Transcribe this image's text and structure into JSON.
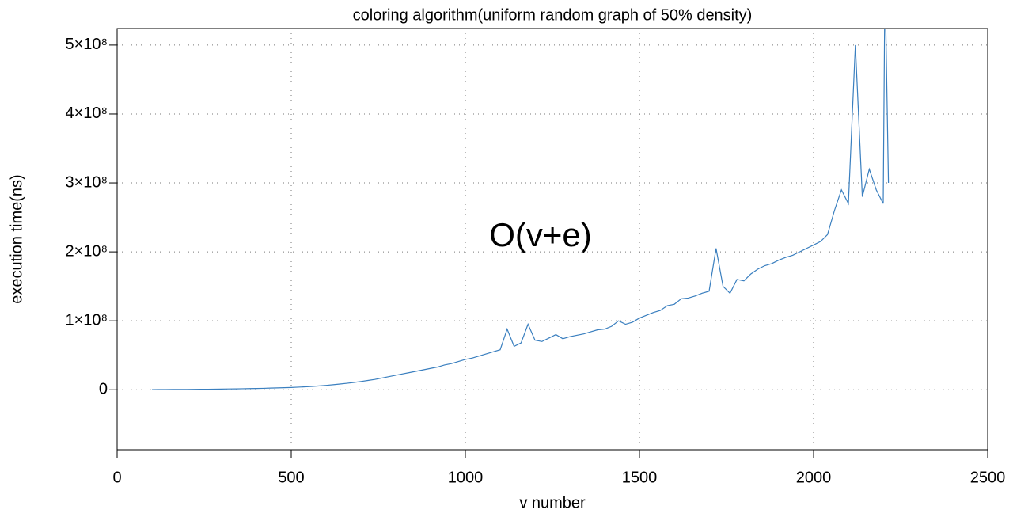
{
  "chart_data": {
    "type": "line",
    "title": "coloring algorithm(uniform random graph of 50% density)",
    "xlabel": "v number",
    "ylabel": "execution time(ns)",
    "annotation": "O(v+e)",
    "color": "#3a7fbf",
    "grid": true,
    "xlim": [
      0,
      2500
    ],
    "xticks": [
      0,
      500,
      1000,
      1500,
      2000,
      2500
    ],
    "ylim": [
      -87000000,
      524000000
    ],
    "yticks": [
      {
        "value": 0,
        "label": "0"
      },
      {
        "value": 100000000,
        "label": "1×10⁸"
      },
      {
        "value": 200000000,
        "label": "2×10⁸"
      },
      {
        "value": 300000000,
        "label": "3×10⁸"
      },
      {
        "value": 400000000,
        "label": "4×10⁸"
      },
      {
        "value": 500000000,
        "label": "5×10⁸"
      }
    ],
    "x": [
      100,
      120,
      140,
      160,
      180,
      200,
      220,
      240,
      260,
      280,
      300,
      320,
      340,
      360,
      380,
      400,
      420,
      440,
      460,
      480,
      500,
      520,
      540,
      560,
      580,
      600,
      620,
      640,
      660,
      680,
      700,
      720,
      740,
      760,
      780,
      800,
      820,
      840,
      860,
      880,
      900,
      920,
      940,
      960,
      980,
      1000,
      1020,
      1040,
      1060,
      1080,
      1100,
      1120,
      1140,
      1160,
      1180,
      1200,
      1220,
      1240,
      1260,
      1280,
      1300,
      1320,
      1340,
      1360,
      1380,
      1400,
      1420,
      1440,
      1460,
      1480,
      1500,
      1520,
      1540,
      1560,
      1580,
      1600,
      1620,
      1640,
      1660,
      1680,
      1700,
      1720,
      1740,
      1760,
      1780,
      1800,
      1820,
      1840,
      1860,
      1880,
      1900,
      1920,
      1940,
      1960,
      1980,
      2000,
      2020,
      2040,
      2060,
      2080,
      2100,
      2120,
      2140,
      2160,
      2180,
      2200,
      2205,
      2215
    ],
    "values": [
      200000.0,
      300000.0,
      300000.0,
      400000.0,
      500000.0,
      500000.0,
      600000.0,
      700000.0,
      800000.0,
      900000.0,
      1000000.0,
      1200000.0,
      1300000.0,
      1500000.0,
      1700000.0,
      1900000.0,
      2100000.0,
      2400000.0,
      2700000.0,
      3000000.0,
      3300000.0,
      3800000.0,
      4300000.0,
      4900000.0,
      5600000.0,
      6400000.0,
      7300000.0,
      8300000.0,
      9400000.0,
      10600000.0,
      12000000.0,
      13500000.0,
      15000000.0,
      17000000.0,
      19000000.0,
      21000000.0,
      23000000.0,
      25000000.0,
      27000000.0,
      29000000.0,
      31000000.0,
      33000000.0,
      36000000.0,
      38000000.0,
      41000000.0,
      44000000.0,
      46000000.0,
      49000000.0,
      52000000.0,
      55000000.0,
      58000000.0,
      88000000.0,
      63000000.0,
      68000000.0,
      95000000.0,
      72000000.0,
      70000000.0,
      75000000.0,
      80000000.0,
      74000000.0,
      77000000.0,
      79000000.0,
      81000000.0,
      84000000.0,
      87000000.0,
      88000000.0,
      92000000.0,
      100000000.0,
      95000000.0,
      98000000.0,
      104000000.0,
      108000000.0,
      112000000.0,
      115000000.0,
      122000000.0,
      124000000.0,
      132000000.0,
      133000000.0,
      136000000.0,
      140000000.0,
      143000000.0,
      205000000.0,
      150000000.0,
      140000000.0,
      160000000.0,
      158000000.0,
      168000000.0,
      175000000.0,
      180000000.0,
      183000000.0,
      188000000.0,
      192000000.0,
      195000000.0,
      200000000.0,
      205000000.0,
      210000000.0,
      215000000.0,
      225000000.0,
      260000000.0,
      290000000.0,
      270000000.0,
      500000000.0,
      280000000.0,
      320000000.0,
      290000000.0,
      270000000.0,
      600000000.0,
      300000000.0
    ]
  }
}
